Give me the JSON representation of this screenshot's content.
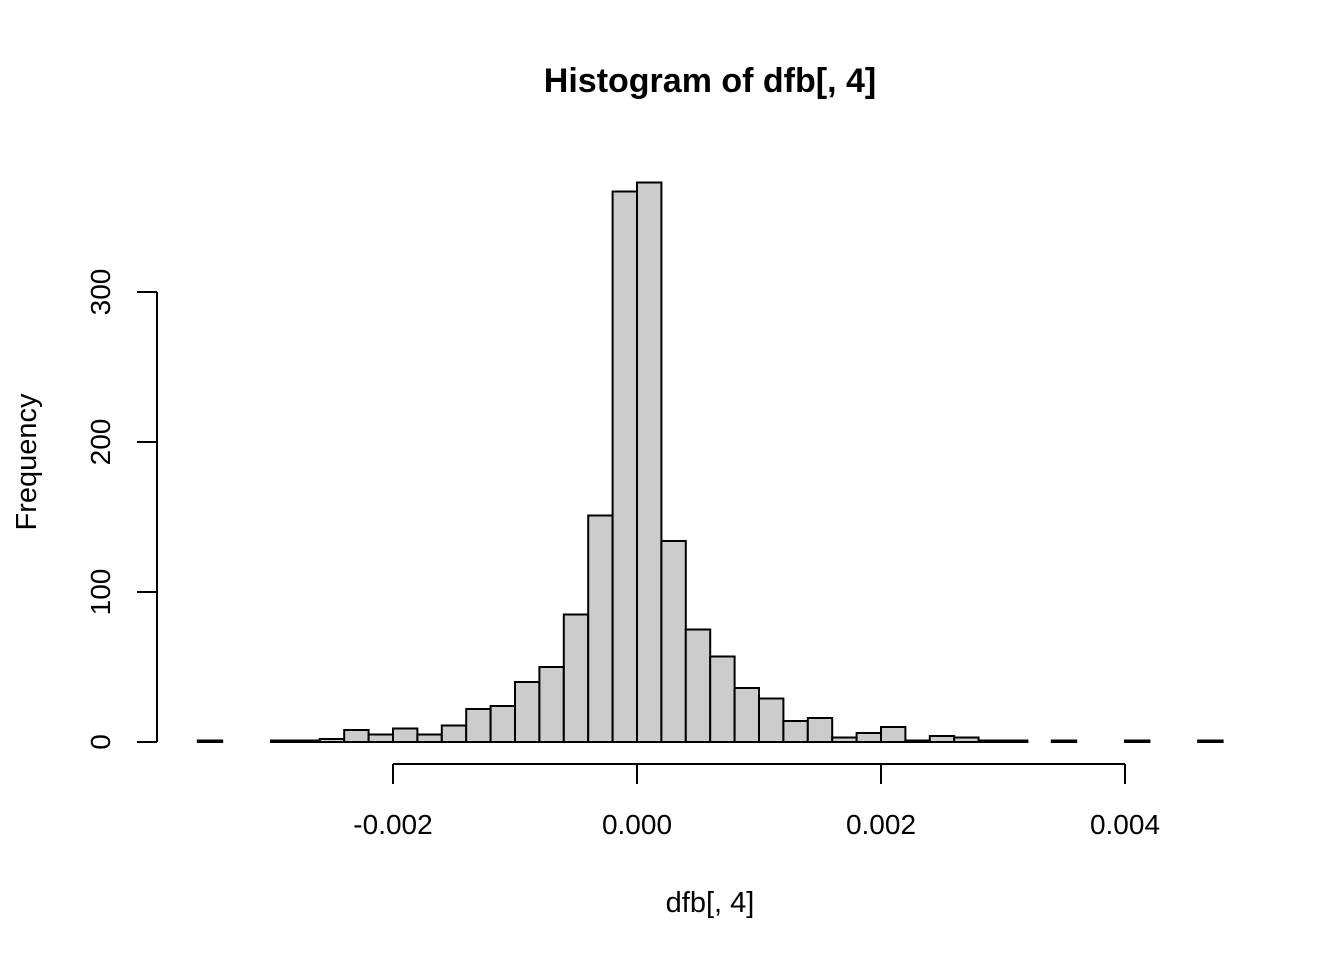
{
  "chart_data": {
    "type": "bar",
    "title": "Histogram of dfb[, 4]",
    "xlabel": "dfb[, 4]",
    "ylabel": "Frequency",
    "bin_width": 0.0002,
    "bin_start": -0.0036,
    "values": [
      1,
      0,
      0,
      1,
      1,
      2,
      8,
      5,
      9,
      5,
      11,
      22,
      24,
      40,
      50,
      85,
      151,
      367,
      373,
      134,
      75,
      57,
      36,
      29,
      14,
      16,
      3,
      6,
      10,
      1,
      4,
      3,
      1,
      1,
      0,
      1,
      0,
      0,
      1,
      0,
      0,
      1
    ],
    "xlim": [
      -0.0036,
      0.0048
    ],
    "ylim": [
      0,
      373
    ],
    "x_ticks": [
      -0.002,
      0.0,
      0.002,
      0.004
    ],
    "x_tick_labels": [
      "-0.002",
      "0.000",
      "0.002",
      "0.004"
    ],
    "y_ticks": [
      0,
      100,
      200,
      300
    ],
    "y_tick_labels": [
      "0",
      "100",
      "200",
      "300"
    ],
    "grid": false,
    "legend": "none"
  }
}
